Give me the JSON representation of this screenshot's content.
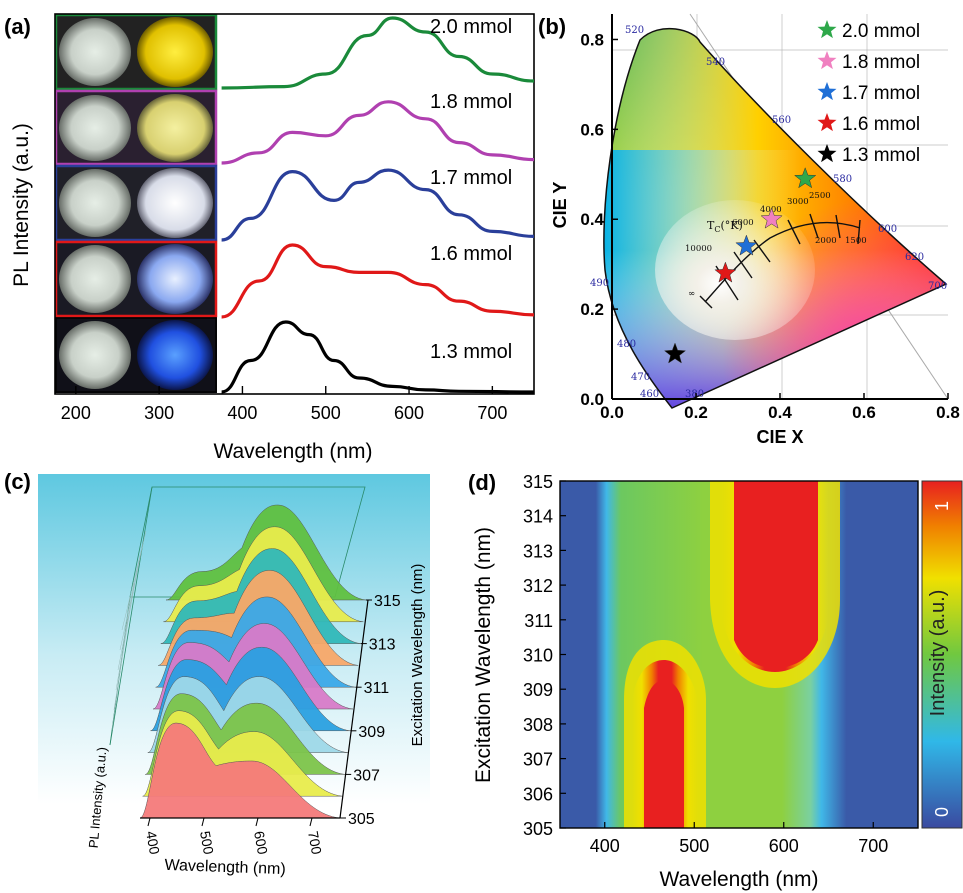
{
  "panels": {
    "a": {
      "label": "(a)",
      "xlabel": "Wavelength (nm)",
      "ylabel": "PL Intensity (a.u.)",
      "xticks": [
        "200",
        "300",
        "400",
        "500",
        "600",
        "700"
      ]
    },
    "b": {
      "label": "(b)",
      "xlabel": "CIE  X",
      "ylabel": "CIE  Y",
      "xticks": [
        "0.0",
        "0.2",
        "0.4",
        "0.6",
        "0.8"
      ],
      "yticks": [
        "0.0",
        "0.2",
        "0.4",
        "0.6",
        "0.8"
      ],
      "tc_label": "T",
      "tc_sub": "C",
      "tc_unit": "(°K)",
      "wavelength_marks": [
        "380",
        "460",
        "470",
        "480",
        "490",
        "520",
        "540",
        "560",
        "580",
        "600",
        "620",
        "700"
      ],
      "cct_marks": [
        "10000",
        "6000",
        "4000",
        "3000",
        "2500",
        "2000",
        "1500",
        "∞"
      ]
    },
    "c": {
      "label": "(c)",
      "xlabel": "Wavelength (nm)",
      "zlabel": "PL Intensity (a.u.)",
      "ylabel": "Excitation Wavelength (nm)",
      "xticks": [
        "400",
        "500",
        "600",
        "700"
      ],
      "yticks": [
        "305",
        "307",
        "309",
        "311",
        "313",
        "315"
      ]
    },
    "d": {
      "label": "(d)",
      "xlabel": "Wavelength (nm)",
      "ylabel": "Excitation Wavelength (nm)",
      "colorbar_label": "Intensity (a.u.)",
      "colorbar_max": "1",
      "colorbar_min": "0",
      "xticks": [
        "400",
        "500",
        "600",
        "700"
      ],
      "yticks": [
        "305",
        "306",
        "307",
        "308",
        "309",
        "310",
        "311",
        "312",
        "313",
        "314",
        "315"
      ]
    }
  },
  "chart_data": [
    {
      "type": "line",
      "panel": "a",
      "xlabel": "Wavelength (nm)",
      "ylabel": "PL Intensity (a.u.)",
      "xlim": [
        175,
        750
      ],
      "series": [
        {
          "name": "2.0 mmol",
          "color": "#1a8a3a",
          "x": [
            375,
            450,
            500,
            550,
            580,
            620,
            660,
            700,
            750
          ],
          "y": [
            0.0,
            0.02,
            0.2,
            0.75,
            1.0,
            0.8,
            0.45,
            0.2,
            0.1
          ]
        },
        {
          "name": "1.8 mmol",
          "color": "#b040b0",
          "x": [
            375,
            420,
            460,
            500,
            540,
            575,
            620,
            660,
            700,
            750
          ],
          "y": [
            0.0,
            0.15,
            0.45,
            0.4,
            0.7,
            0.9,
            0.65,
            0.3,
            0.12,
            0.05
          ]
        },
        {
          "name": "1.7 mmol",
          "color": "#2a3f9a",
          "x": [
            375,
            410,
            460,
            510,
            540,
            575,
            620,
            660,
            700,
            750
          ],
          "y": [
            0.0,
            0.3,
            0.95,
            0.55,
            0.8,
            0.97,
            0.7,
            0.35,
            0.12,
            0.05
          ]
        },
        {
          "name": "1.6 mmol",
          "color": "#e01818",
          "x": [
            375,
            420,
            460,
            500,
            540,
            575,
            620,
            660,
            700,
            750
          ],
          "y": [
            0.0,
            0.5,
            1.0,
            0.7,
            0.62,
            0.62,
            0.45,
            0.22,
            0.08,
            0.03
          ]
        },
        {
          "name": "1.3 mmol",
          "color": "#000000",
          "x": [
            375,
            410,
            452,
            480,
            510,
            540,
            580,
            620,
            660,
            750
          ],
          "y": [
            0.0,
            0.45,
            1.0,
            0.82,
            0.45,
            0.2,
            0.08,
            0.03,
            0.01,
            0.0
          ]
        }
      ]
    },
    {
      "type": "scatter",
      "panel": "b",
      "xlabel": "CIE  X",
      "ylabel": "CIE  Y",
      "xlim": [
        0,
        0.8
      ],
      "ylim": [
        0,
        0.85
      ],
      "legend": "top-right",
      "series": [
        {
          "name": "2.0 mmol",
          "color": "#2ea84a",
          "x": [
            0.46
          ],
          "y": [
            0.49
          ]
        },
        {
          "name": "1.8 mmol",
          "color": "#f080c0",
          "x": [
            0.38
          ],
          "y": [
            0.4
          ]
        },
        {
          "name": "1.7 mmol",
          "color": "#1f6fd6",
          "x": [
            0.32
          ],
          "y": [
            0.34
          ]
        },
        {
          "name": "1.6 mmol",
          "color": "#e01818",
          "x": [
            0.27
          ],
          "y": [
            0.28
          ]
        },
        {
          "name": "1.3 mmol",
          "color": "#000000",
          "x": [
            0.15
          ],
          "y": [
            0.1
          ]
        }
      ]
    },
    {
      "type": "area",
      "panel": "c",
      "xlabel": "Wavelength (nm)",
      "ylabel": "Excitation Wavelength (nm)",
      "zlabel": "PL Intensity (a.u.)",
      "xlim": [
        370,
        740
      ],
      "excitation": [
        305,
        306,
        307,
        308,
        309,
        310,
        311,
        312,
        313,
        314,
        315
      ],
      "colors": [
        "#f47a7a",
        "#e8ec4c",
        "#7cc44a",
        "#9ed8e8",
        "#2aa0e0",
        "#d87ac8",
        "#3aa8e8",
        "#f8a868",
        "#30b8b8",
        "#e8ec4c",
        "#60c040"
      ],
      "peak_blue": [
        1.0,
        0.9,
        0.85,
        0.8,
        0.75,
        0.7,
        0.6,
        0.5,
        0.45,
        0.38,
        0.3
      ],
      "peak_yellow": [
        0.6,
        0.68,
        0.75,
        0.8,
        0.88,
        0.9,
        0.95,
        1.0,
        1.0,
        1.0,
        1.0
      ]
    },
    {
      "type": "heatmap",
      "panel": "d",
      "xlabel": "Wavelength (nm)",
      "ylabel": "Excitation Wavelength (nm)",
      "xlim": [
        350,
        750
      ],
      "ylim": [
        305,
        315
      ],
      "colorbar": [
        0,
        1
      ],
      "regions": [
        {
          "name": "blue band",
          "x_center": 465,
          "y_range": [
            305,
            310
          ],
          "level": 1.0
        },
        {
          "name": "yellow band",
          "x_center": 575,
          "y_range": [
            309,
            315
          ],
          "level": 1.0
        }
      ]
    }
  ]
}
